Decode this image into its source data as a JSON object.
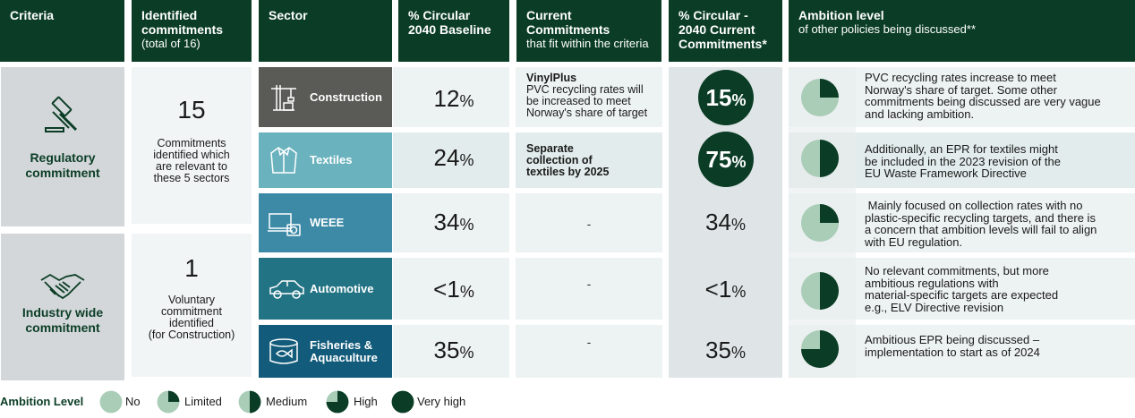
{
  "header": {
    "criteria": "Criteria",
    "identified_title": "Identified commitments",
    "identified_sub": "(total of 16)",
    "sector": "Sector",
    "baseline_line1": "% Circular",
    "baseline_line2": "2040 Baseline",
    "current_title": "Current Commitments",
    "current_sub": "that fit within the criteria",
    "circ2040_line1": "% Circular -",
    "circ2040_line2": "2040 Current",
    "circ2040_line3": "Commitments*",
    "ambition_title": "Ambition level",
    "ambition_sub": "of other policies being discussed**"
  },
  "criteria": [
    {
      "label_line1": "Regulatory",
      "label_line2": "commitment",
      "icon": "gavel-icon",
      "count": "15",
      "desc_lines": [
        "Commitments",
        "identified which",
        "are relevant to",
        "these 5 sectors"
      ]
    },
    {
      "label_line1": "Industry wide",
      "label_line2": "commitment",
      "icon": "handshake-icon",
      "count": "1",
      "desc_lines": [
        "Voluntary",
        "commitment",
        "identified",
        "(for Construction)"
      ]
    }
  ],
  "sectors": [
    {
      "name_line1": "Construction",
      "name_line2": "",
      "icon": "crane-icon",
      "color": "#5a5a57",
      "baseline_num": "12",
      "baseline_unit": "%",
      "commitment_bold": "VinylPlus",
      "commitment_lines": [
        "PVC recycling rates will",
        "be increased to meet",
        "Norway's share of target"
      ],
      "circ_num": "15",
      "circ_unit": "%",
      "circ_highlight": true,
      "ambition_level": 0.25,
      "ambition_lines": [
        "PVC recycling rates increase to meet",
        "Norway's share of target. Some other",
        "commitments being discussed are very vague",
        "and lacking ambition."
      ]
    },
    {
      "name_line1": "Textiles",
      "name_line2": "",
      "icon": "jacket-icon",
      "color": "#6ab2be",
      "baseline_num": "24",
      "baseline_unit": "%",
      "commitment_bold_lines": [
        "Separate",
        "collection of",
        "textiles by 2025"
      ],
      "circ_num": "75",
      "circ_unit": "%",
      "circ_highlight": true,
      "ambition_level": 0.5,
      "ambition_lines": [
        "Additionally, an EPR for textiles might",
        "be included in the 2023 revision of the",
        "EU Waste Framework Directive"
      ]
    },
    {
      "name_line1": "WEEE",
      "name_line2": "",
      "icon": "electronics-icon",
      "color": "#3d8aa6",
      "baseline_num": "34",
      "baseline_unit": "%",
      "commitment_dash": "-",
      "circ_num": "34",
      "circ_unit": "%",
      "circ_highlight": false,
      "ambition_level": 0.25,
      "ambition_lines": [
        " Mainly focused on collection rates with no",
        "plastic-specific recycling targets, and there is",
        "a concern that ambition levels will fail to align",
        "with EU regulation."
      ]
    },
    {
      "name_line1": "Automotive",
      "name_line2": "",
      "icon": "car-icon",
      "color": "#227384",
      "baseline_num": "<1",
      "baseline_unit": "%",
      "commitment_dash": "-",
      "circ_num": "<1",
      "circ_unit": "%",
      "circ_highlight": false,
      "ambition_level": 0.5,
      "ambition_lines": [
        "No relevant commitments, but more",
        "ambitious regulations with",
        "material-specific targets are expected",
        "e.g., ELV Directive revision"
      ]
    },
    {
      "name_line1": "Fisheries &",
      "name_line2": "Aquaculture",
      "icon": "fish-can-icon",
      "color": "#125b7a",
      "baseline_num": "35",
      "baseline_unit": "%",
      "commitment_dash": "-",
      "circ_num": "35",
      "circ_unit": "%",
      "circ_highlight": false,
      "ambition_level": 0.75,
      "ambition_lines": [
        "Ambitious EPR being discussed –",
        "implementation to start as of 2024"
      ]
    }
  ],
  "legend": {
    "title": "Ambition Level",
    "items": [
      {
        "label": "No",
        "level": 0
      },
      {
        "label": "Limited",
        "level": 0.25
      },
      {
        "label": "Medium",
        "level": 0.5
      },
      {
        "label": "High",
        "level": 0.75
      },
      {
        "label": "Very high",
        "level": 1
      }
    ]
  },
  "colors": {
    "dark_green": "#0b3d26",
    "pie_light": "#a9cdb7",
    "row_light": "#edf2f3",
    "row_lighter": "#f1f5f6"
  }
}
